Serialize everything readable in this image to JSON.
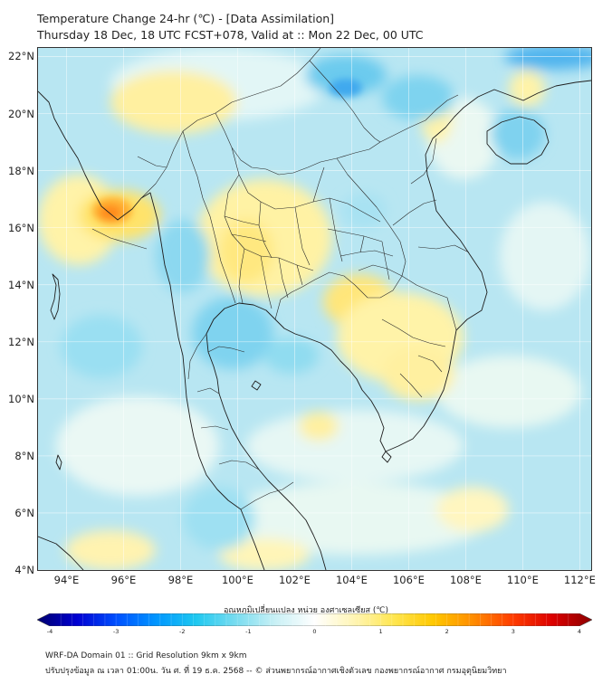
{
  "header": {
    "title_line1": "Temperature Change 24-hr (℃) - [Data Assimilation]",
    "title_line2": "Thursday 18 Dec, 18 UTC FCST+078, Valid at :: Mon 22 Dec, 00 UTC"
  },
  "map": {
    "lat_labels": [
      "22°N",
      "20°N",
      "18°N",
      "16°N",
      "14°N",
      "12°N",
      "10°N",
      "8°N",
      "6°N",
      "4°N"
    ],
    "lon_labels": [
      "94°E",
      "96°E",
      "98°E",
      "100°E",
      "102°E",
      "104°E",
      "106°E",
      "108°E",
      "110°E",
      "112°E"
    ],
    "lat_range": [
      4,
      22.3
    ],
    "lon_range": [
      93,
      112.4
    ],
    "field_background_color": "#b8e6f2",
    "land_outline_color": "#222222",
    "border_color": "#333333"
  },
  "colorbar": {
    "title": "อุณหภูมิเปลี่ยนแปลง หน่วย องศาเซลเซียส (℃)",
    "ticks": [
      "-4",
      "-3",
      "-2",
      "-1",
      "0",
      "1",
      "2",
      "3",
      "4"
    ],
    "range": [
      -4,
      4
    ],
    "colors": [
      "#00006e",
      "#0000d2",
      "#0050ff",
      "#0096ff",
      "#1ec8f0",
      "#78dcf0",
      "#c8f0f5",
      "#ffffff",
      "#fff5b4",
      "#ffe650",
      "#ffc800",
      "#ff8c00",
      "#ff3c00",
      "#dc0000",
      "#8c0000"
    ]
  },
  "footer": {
    "line1": "WRF-DA Domain 01 :: Grid Resolution 9km x 9km",
    "line2": "ปรับปรุงข้อมูล ณ เวลา 01:00น. วัน ศ. ที่ 19 ธ.ค. 2568 -- © ส่วนพยากรณ์อากาศเชิงตัวเลข กองพยากรณ์อากาศ กรมอุตุนิยมวิทยา"
  }
}
